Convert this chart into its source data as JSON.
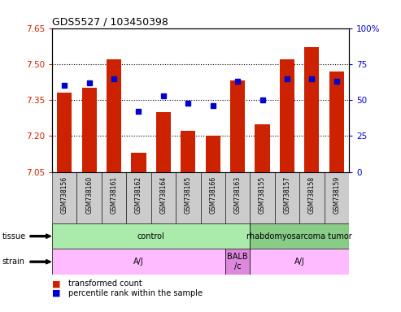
{
  "title": "GDS5527 / 103450398",
  "samples": [
    "GSM738156",
    "GSM738160",
    "GSM738161",
    "GSM738162",
    "GSM738164",
    "GSM738165",
    "GSM738166",
    "GSM738163",
    "GSM738155",
    "GSM738157",
    "GSM738158",
    "GSM738159"
  ],
  "bar_values": [
    7.38,
    7.4,
    7.52,
    7.13,
    7.3,
    7.22,
    7.2,
    7.43,
    7.25,
    7.52,
    7.57,
    7.47
  ],
  "bar_base": 7.05,
  "percentile_values": [
    60,
    62,
    65,
    42,
    53,
    48,
    46,
    63,
    50,
    65,
    65,
    63
  ],
  "ymin": 7.05,
  "ymax": 7.65,
  "yticks": [
    7.05,
    7.2,
    7.35,
    7.5,
    7.65
  ],
  "y2min": 0,
  "y2max": 100,
  "y2ticks": [
    0,
    25,
    50,
    75,
    100
  ],
  "bar_color": "#cc2200",
  "dot_color": "#0000cc",
  "tissue_groups": [
    {
      "label": "control",
      "start": 0,
      "end": 8,
      "color": "#aaeaaa"
    },
    {
      "label": "rhabdomyosarcoma tumor",
      "start": 8,
      "end": 12,
      "color": "#88cc88"
    }
  ],
  "strain_groups": [
    {
      "label": "A/J",
      "start": 0,
      "end": 7,
      "color": "#ffbbff"
    },
    {
      "label": "BALB\n/c",
      "start": 7,
      "end": 8,
      "color": "#dd88dd"
    },
    {
      "label": "A/J",
      "start": 8,
      "end": 12,
      "color": "#ffbbff"
    }
  ],
  "legend_items": [
    {
      "color": "#cc2200",
      "label": "transformed count"
    },
    {
      "color": "#0000cc",
      "label": "percentile rank within the sample"
    }
  ],
  "ylabel_left_color": "#cc2200",
  "ylabel_right_color": "#0000cc",
  "grid_color": "#000000",
  "sample_label_bg": "#cccccc"
}
